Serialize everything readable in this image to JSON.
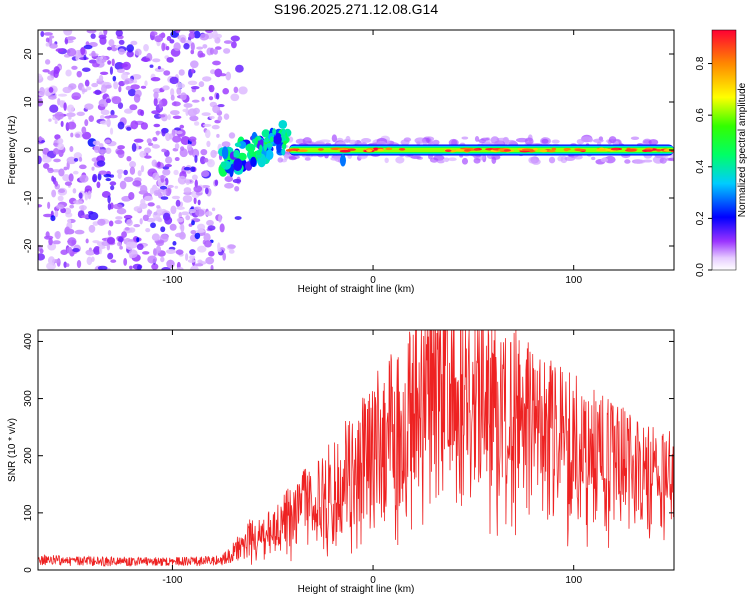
{
  "title": "S196.2025.271.12.08.G14",
  "chart_data": [
    {
      "type": "heatmap",
      "xlabel": "Height of straight line (km)",
      "ylabel": "Frequency (Hz)",
      "xlim": [
        -167,
        150
      ],
      "ylim": [
        -25,
        25
      ],
      "xticks": [
        -100,
        0,
        100
      ],
      "yticks": [
        -20,
        -10,
        0,
        10,
        20
      ],
      "colorbar": {
        "label": "Normalized spectral amplitude",
        "range": [
          0,
          0.93
        ],
        "ticks": [
          0.0,
          0.2,
          0.4,
          0.6,
          0.8
        ]
      },
      "regions": [
        {
          "name": "noise",
          "x_range": [
            -167,
            -72
          ],
          "f_range": [
            -25,
            25
          ],
          "amplitude": 0.1
        },
        {
          "name": "transition",
          "x_range": [
            -75,
            -42
          ],
          "f_range": [
            -5,
            7
          ],
          "amplitude": 0.45
        },
        {
          "name": "main_tone",
          "x_range": [
            -42,
            150
          ],
          "f_center": 0,
          "f_halfwidth": 1.5,
          "amplitude": 0.9
        }
      ]
    },
    {
      "type": "line",
      "xlabel": "Height of straight line (km)",
      "ylabel": "SNR (10 * v/v)",
      "xlim": [
        -167,
        150
      ],
      "ylim": [
        0,
        420
      ],
      "xticks": [
        -100,
        0,
        100
      ],
      "yticks": [
        0,
        100,
        200,
        300,
        400
      ],
      "series": [
        {
          "name": "SNR",
          "color": "#ee2222",
          "x": [
            -167,
            -150,
            -130,
            -110,
            -90,
            -75,
            -70,
            -65,
            -60,
            -55,
            -50,
            -45,
            -40,
            -35,
            -30,
            -25,
            -20,
            -15,
            -10,
            -5,
            0,
            5,
            10,
            15,
            20,
            25,
            30,
            35,
            40,
            45,
            50,
            60,
            70,
            80,
            90,
            100,
            110,
            120,
            130,
            140,
            150
          ],
          "y": [
            18,
            16,
            15,
            15,
            15,
            18,
            30,
            45,
            60,
            55,
            75,
            85,
            105,
            115,
            125,
            140,
            150,
            160,
            175,
            195,
            215,
            230,
            250,
            265,
            280,
            290,
            300,
            305,
            310,
            310,
            300,
            285,
            265,
            245,
            230,
            215,
            200,
            185,
            170,
            160,
            150
          ]
        }
      ]
    }
  ]
}
